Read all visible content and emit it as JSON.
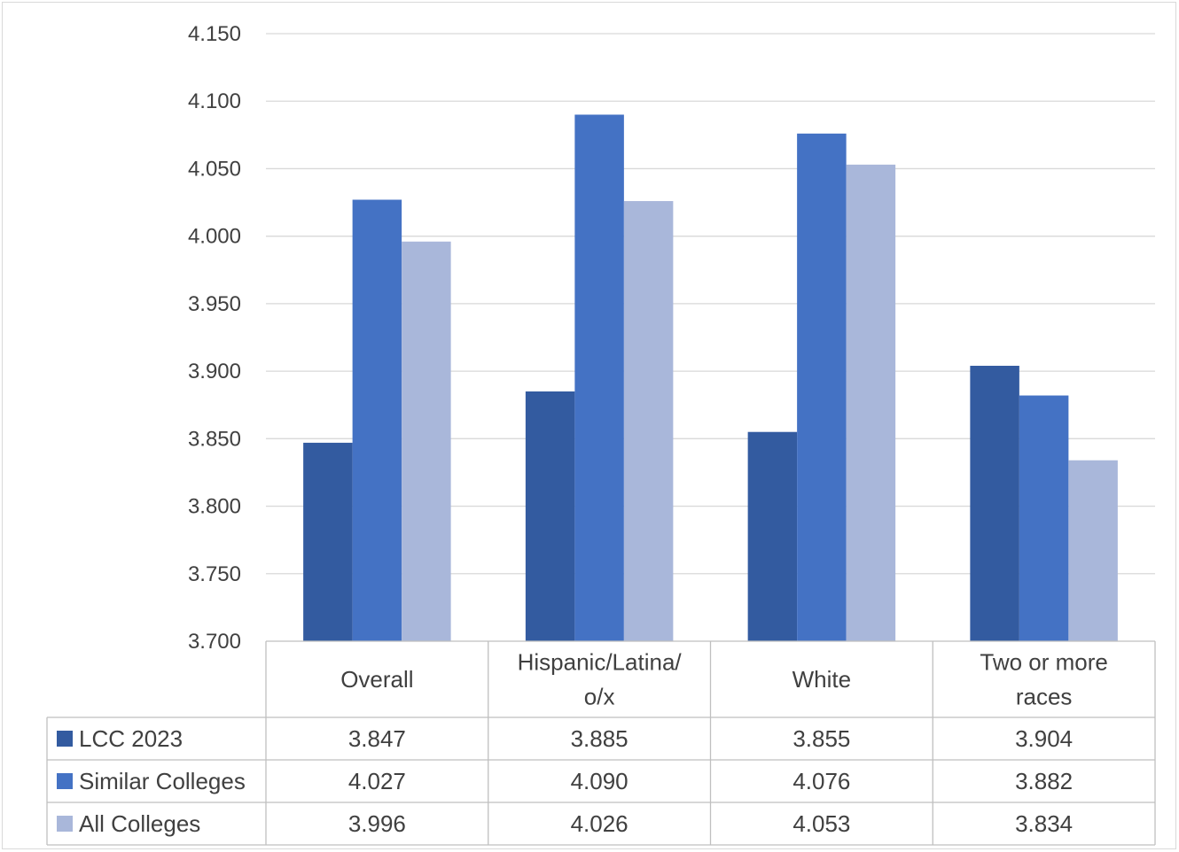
{
  "chart_data": {
    "type": "bar",
    "title": "",
    "xlabel": "",
    "ylabel": "",
    "ylim": [
      3.7,
      4.15
    ],
    "yticks": [
      "4.150",
      "4.100",
      "4.050",
      "4.000",
      "3.950",
      "3.900",
      "3.850",
      "3.800",
      "3.750",
      "3.700"
    ],
    "ytick_values": [
      4.15,
      4.1,
      4.05,
      4.0,
      3.95,
      3.9,
      3.85,
      3.8,
      3.75,
      3.7
    ],
    "grid": true,
    "legend": "data-table",
    "categories": [
      [
        "Overall"
      ],
      [
        "Hispanic/Latina/",
        "o/x"
      ],
      [
        "White"
      ],
      [
        "Two or more",
        "races"
      ]
    ],
    "series": [
      {
        "name": "LCC 2023",
        "color": "#335ba0",
        "values": [
          3.847,
          3.885,
          3.855,
          3.904
        ],
        "labels": [
          "3.847",
          "3.885",
          "3.855",
          "3.904"
        ]
      },
      {
        "name": "Similar Colleges",
        "color": "#4472c4",
        "values": [
          4.027,
          4.09,
          4.076,
          3.882
        ],
        "labels": [
          "4.027",
          "4.090",
          "4.076",
          "3.882"
        ]
      },
      {
        "name": "All Colleges",
        "color": "#a9b7da",
        "values": [
          3.996,
          4.026,
          4.053,
          3.834
        ],
        "labels": [
          "3.996",
          "4.026",
          "4.053",
          "3.834"
        ]
      }
    ]
  }
}
